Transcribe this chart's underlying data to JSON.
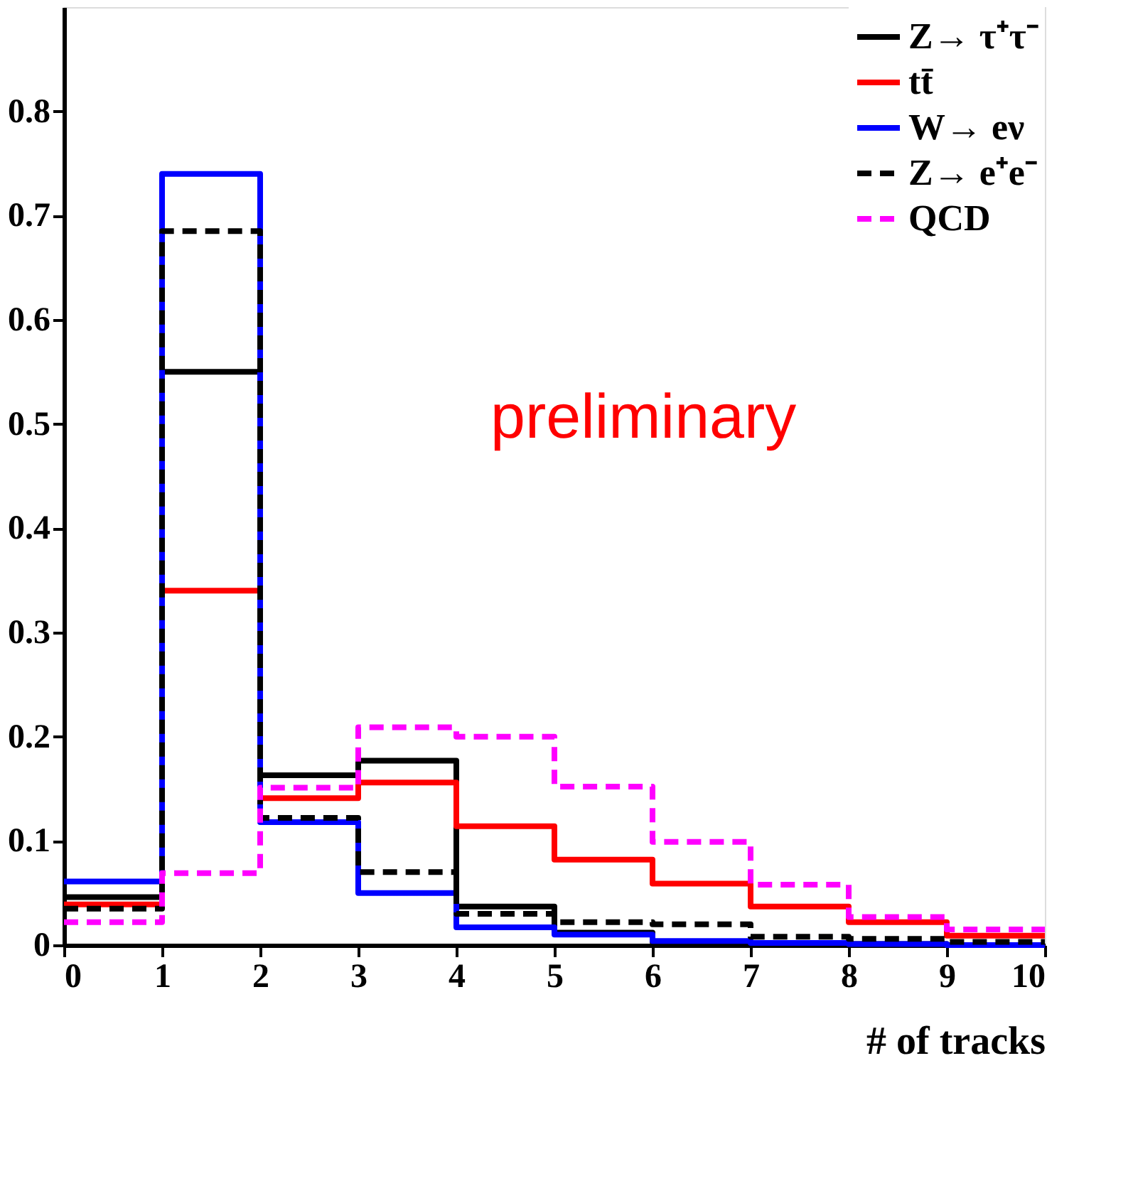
{
  "chart_data": {
    "type": "histogram",
    "xlabel": "# of tracks",
    "bins": [
      0,
      1,
      2,
      3,
      4,
      5,
      6,
      7,
      8,
      9,
      10
    ],
    "xlim": [
      0,
      10
    ],
    "xticks": [
      0,
      1,
      2,
      3,
      4,
      5,
      6,
      7,
      8,
      9,
      10
    ],
    "ylim": [
      0,
      0.9
    ],
    "yticks": [
      0,
      0.1,
      0.2,
      0.3,
      0.4,
      0.5,
      0.6,
      0.7,
      0.8
    ],
    "legend": "top right",
    "grid": false,
    "annotations": [
      "preliminary"
    ],
    "series": [
      {
        "name": "Z→ τ⁺τ⁻",
        "color": "#000000",
        "line_style": "solid",
        "values": [
          0.046,
          0.55,
          0.163,
          0.177,
          0.037,
          0.012,
          0.003,
          0.002,
          0.001,
          0.0
        ]
      },
      {
        "name": "tt̄",
        "color": "#ff0000",
        "line_style": "solid",
        "values": [
          0.039,
          0.34,
          0.141,
          0.156,
          0.114,
          0.082,
          0.059,
          0.037,
          0.022,
          0.009
        ]
      },
      {
        "name": "W→ eν",
        "color": "#0000ff",
        "line_style": "solid",
        "values": [
          0.061,
          0.74,
          0.118,
          0.05,
          0.017,
          0.01,
          0.004,
          0.002,
          0.001,
          0.0
        ]
      },
      {
        "name": "Z→ e⁺e⁻",
        "color": "#010101",
        "line_style": "dashed",
        "values": [
          0.035,
          0.685,
          0.122,
          0.07,
          0.03,
          0.022,
          0.02,
          0.008,
          0.006,
          0.003
        ]
      },
      {
        "name": "QCD",
        "color": "#ff00ff",
        "line_style": "dashed",
        "values": [
          0.022,
          0.069,
          0.151,
          0.209,
          0.2,
          0.152,
          0.099,
          0.058,
          0.027,
          0.015
        ]
      }
    ]
  }
}
